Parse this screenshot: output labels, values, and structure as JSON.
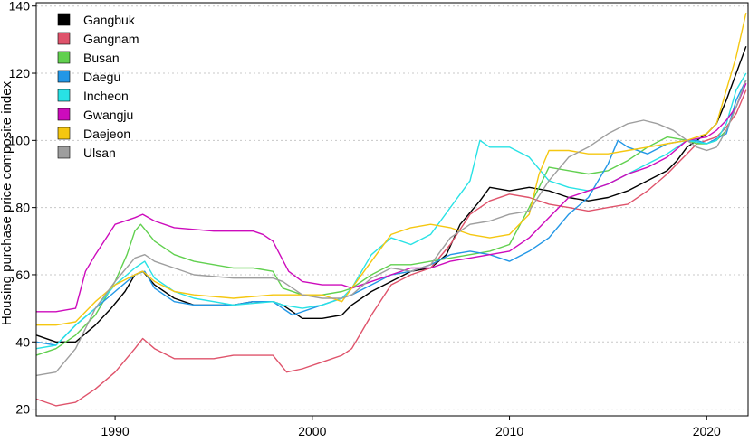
{
  "chart_data": {
    "type": "line",
    "title": "",
    "xlabel": "",
    "ylabel": "Housing purchase price composite index",
    "xlim": [
      1986,
      2022.1
    ],
    "ylim": [
      18,
      141
    ],
    "xticks": [
      1990,
      2000,
      2010,
      2020
    ],
    "yticks": [
      20,
      40,
      60,
      80,
      100,
      120,
      140
    ],
    "grid": "horizontal dotted",
    "legend_position": "top-left",
    "series": [
      {
        "name": "Gangbuk",
        "color": "#000000",
        "x": [
          1986,
          1987,
          1988,
          1989,
          1989.8,
          1990.5,
          1991,
          1991.4,
          1992,
          1993,
          1994,
          1996,
          1997,
          1998,
          1998.5,
          1999.5,
          2000.5,
          2001.5,
          2002,
          2003,
          2004,
          2005,
          2006,
          2006.8,
          2007.5,
          2008.5,
          2009,
          2010,
          2011,
          2012,
          2013,
          2014,
          2015,
          2016,
          2017,
          2018,
          2018.5,
          2019,
          2019.5,
          2020,
          2020.5,
          2021,
          2021.5,
          2022
        ],
        "y": [
          42,
          40,
          40,
          45,
          50,
          55,
          60,
          61,
          57,
          53,
          51,
          51,
          52,
          52,
          51,
          47,
          47,
          48,
          51,
          55,
          58,
          61,
          62,
          66,
          75,
          82,
          86,
          85,
          86,
          85,
          83,
          82,
          83,
          85,
          88,
          91,
          94,
          98,
          100,
          102,
          105,
          112,
          120,
          128
        ]
      },
      {
        "name": "Gangnam",
        "color": "#df536b",
        "x": [
          1986,
          1987,
          1988,
          1989,
          1990,
          1991,
          1991.4,
          1992,
          1993,
          1994,
          1995,
          1996,
          1997,
          1998,
          1998.7,
          1999.5,
          2000.5,
          2001.5,
          2002,
          2003,
          2004,
          2005,
          2006,
          2007,
          2008,
          2009,
          2010,
          2011,
          2012,
          2013,
          2014,
          2015,
          2016,
          2017,
          2018,
          2018.5,
          2019,
          2019.5,
          2020,
          2020.5,
          2021,
          2021.5,
          2022
        ],
        "y": [
          23,
          21,
          22,
          26,
          31,
          38,
          41,
          38,
          35,
          35,
          35,
          36,
          36,
          36,
          31,
          32,
          34,
          36,
          38,
          48,
          57,
          60,
          62,
          69,
          78,
          82,
          84,
          83,
          81,
          80,
          79,
          80,
          81,
          85,
          90,
          93,
          96,
          99,
          100,
          101,
          104,
          108,
          115
        ]
      },
      {
        "name": "Busan",
        "color": "#61d04f",
        "x": [
          1986,
          1987,
          1988,
          1989,
          1990,
          1990.6,
          1991,
          1991.3,
          1992,
          1993,
          1994,
          1995,
          1996,
          1997,
          1998,
          1998.5,
          1999.5,
          2000.5,
          2001.5,
          2002,
          2003,
          2004,
          2005,
          2006,
          2007,
          2008,
          2009,
          2010,
          2011,
          2012,
          2013,
          2014,
          2015,
          2016,
          2017,
          2018,
          2019,
          2019.5,
          2020,
          2020.5,
          2021,
          2021.5,
          2022
        ],
        "y": [
          36,
          38,
          42,
          48,
          58,
          66,
          73,
          75,
          70,
          66,
          64,
          63,
          62,
          62,
          61,
          56,
          54,
          54,
          55,
          56,
          60,
          63,
          63,
          64,
          65,
          66,
          67,
          69,
          80,
          92,
          91,
          90,
          91,
          94,
          98,
          101,
          100,
          99,
          99,
          100,
          103,
          110,
          118
        ]
      },
      {
        "name": "Daegu",
        "color": "#2297e6",
        "x": [
          1986,
          1987,
          1988,
          1989,
          1990,
          1991,
          1991.5,
          1992,
          1993,
          1994,
          1995,
          1996,
          1997,
          1998,
          1999,
          2000,
          2001,
          2002,
          2003,
          2004,
          2005,
          2006,
          2007,
          2008,
          2009,
          2010,
          2011,
          2012,
          2013,
          2014,
          2015,
          2015.5,
          2016,
          2017,
          2018,
          2019,
          2019.5,
          2020,
          2021,
          2021.5,
          2022
        ],
        "y": [
          40,
          39,
          45,
          50,
          55,
          60,
          61,
          56,
          52,
          51,
          51,
          51,
          52,
          52,
          48,
          50,
          52,
          54,
          57,
          60,
          61,
          63,
          66,
          67,
          66,
          64,
          67,
          71,
          78,
          83,
          93,
          100,
          98,
          96,
          99,
          100,
          100,
          99,
          102,
          112,
          118
        ]
      },
      {
        "name": "Incheon",
        "color": "#28e2e5",
        "x": [
          1986,
          1987,
          1988,
          1989,
          1990,
          1991,
          1991.5,
          1992,
          1993,
          1994,
          1996,
          1998,
          1998.5,
          1999.5,
          2000.5,
          2001.5,
          2002,
          2003,
          2004,
          2005,
          2006,
          2007,
          2008,
          2008.5,
          2009,
          2010,
          2011,
          2012,
          2013,
          2014,
          2015,
          2016,
          2017,
          2018,
          2019,
          2020,
          2020.5,
          2021,
          2021.5,
          2022
        ],
        "y": [
          38,
          39,
          45,
          50,
          57,
          62,
          64,
          59,
          55,
          53,
          51,
          52,
          51,
          50,
          51,
          53,
          56,
          66,
          71,
          69,
          72,
          80,
          88,
          100,
          98,
          98,
          95,
          88,
          86,
          85,
          87,
          90,
          93,
          96,
          100,
          99,
          100,
          105,
          115,
          120
        ]
      },
      {
        "name": "Gwangju",
        "color": "#cd0bbc",
        "x": [
          1986,
          1987,
          1988,
          1988.5,
          1989,
          1990,
          1991,
          1991.4,
          1992,
          1993,
          1995,
          1997,
          1997.5,
          1998,
          1998.8,
          1999.5,
          2000.5,
          2001.5,
          2002,
          2003,
          2004,
          2005,
          2006,
          2007,
          2008,
          2009,
          2010,
          2011,
          2012,
          2013,
          2014,
          2015,
          2016,
          2017,
          2018,
          2019,
          2020,
          2020.5,
          2021,
          2021.5,
          2022
        ],
        "y": [
          49,
          49,
          50,
          61,
          66,
          75,
          77,
          78,
          76,
          74,
          73,
          73,
          72,
          70,
          61,
          58,
          57,
          57,
          56,
          58,
          60,
          62,
          62,
          64,
          65,
          66,
          67,
          71,
          77,
          83,
          85,
          87,
          90,
          92,
          95,
          100,
          101,
          103,
          106,
          110,
          117
        ]
      },
      {
        "name": "Daejeon",
        "color": "#f5c710",
        "x": [
          1986,
          1987,
          1988,
          1989,
          1990,
          1991,
          1991.4,
          1992,
          1993,
          1994,
          1996,
          1998,
          1998.5,
          1999.5,
          2000.5,
          2001.5,
          2002,
          2003,
          2004,
          2005,
          2006,
          2007,
          2008,
          2009,
          2010,
          2011,
          2011.5,
          2012,
          2013,
          2014,
          2015,
          2016,
          2017,
          2018,
          2019,
          2020,
          2020.5,
          2021,
          2021.5,
          2022
        ],
        "y": [
          45,
          45,
          46,
          52,
          57,
          60,
          61,
          58,
          55,
          54,
          53,
          54,
          54,
          54,
          54,
          52,
          56,
          64,
          72,
          74,
          75,
          74,
          72,
          71,
          72,
          78,
          90,
          97,
          97,
          96,
          96,
          97,
          98,
          99,
          100,
          102,
          105,
          115,
          125,
          138
        ]
      },
      {
        "name": "Ulsan",
        "color": "#9e9e9e",
        "x": [
          1986,
          1987,
          1988,
          1989,
          1990,
          1991,
          1991.5,
          1992,
          1993,
          1994,
          1996,
          1998,
          1998.5,
          1999.5,
          2000.5,
          2001.5,
          2002,
          2003,
          2004,
          2005,
          2006,
          2007,
          2008,
          2009,
          2010,
          2011,
          2012,
          2013,
          2014,
          2015,
          2016,
          2016.8,
          2017.5,
          2018.3,
          2019,
          2019.5,
          2020,
          2020.5,
          2021,
          2021.5,
          2022
        ],
        "y": [
          30,
          31,
          38,
          50,
          58,
          65,
          66,
          64,
          62,
          60,
          59,
          59,
          58,
          54,
          53,
          53,
          54,
          59,
          62,
          61,
          63,
          71,
          75,
          76,
          78,
          79,
          88,
          95,
          98,
          102,
          105,
          106,
          105,
          103,
          100,
          98,
          97,
          98,
          103,
          110,
          118
        ]
      }
    ]
  }
}
